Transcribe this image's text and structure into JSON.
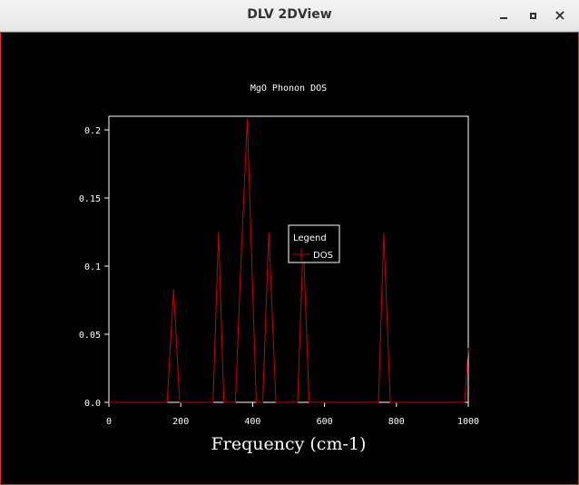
{
  "window": {
    "title": "DLV 2DView",
    "buttons": {
      "minimize": "minimize-icon",
      "maximize": "maximize-icon",
      "close": "close-icon"
    }
  },
  "colors": {
    "background": "#000000",
    "axes": "#ffffff",
    "series": "#cc0000",
    "frame": "#e03030"
  },
  "chart_data": {
    "type": "line",
    "title": "MgO Phonon DOS",
    "xlabel": "Frequency (cm-1)",
    "ylabel": "",
    "xlim": [
      0,
      1000
    ],
    "ylim": [
      0,
      0.21
    ],
    "xticks": [
      0,
      200,
      400,
      600,
      800,
      1000
    ],
    "yticks": [
      0.0,
      0.05,
      0.1,
      0.15,
      0.2
    ],
    "xtick_labels": [
      "0",
      "200",
      "400",
      "600",
      "800",
      "1000"
    ],
    "ytick_labels": [
      "0.0",
      "0.05",
      "0.1",
      "0.15",
      "0.2"
    ],
    "grid": false,
    "legend": {
      "title": "Legend",
      "position": "center-right",
      "entries": [
        "DOS"
      ]
    },
    "series": [
      {
        "name": "DOS",
        "x": [
          0,
          162,
          180,
          197,
          290,
          305,
          320,
          352,
          367,
          385,
          410,
          428,
          445,
          465,
          525,
          541,
          557,
          750,
          765,
          783,
          990,
          1000
        ],
        "y": [
          0,
          0,
          0.083,
          0,
          0,
          0.125,
          0,
          0,
          0.1,
          0.208,
          0,
          0,
          0.125,
          0,
          0,
          0.118,
          0,
          0,
          0.124,
          0,
          0,
          0.04
        ]
      }
    ]
  }
}
